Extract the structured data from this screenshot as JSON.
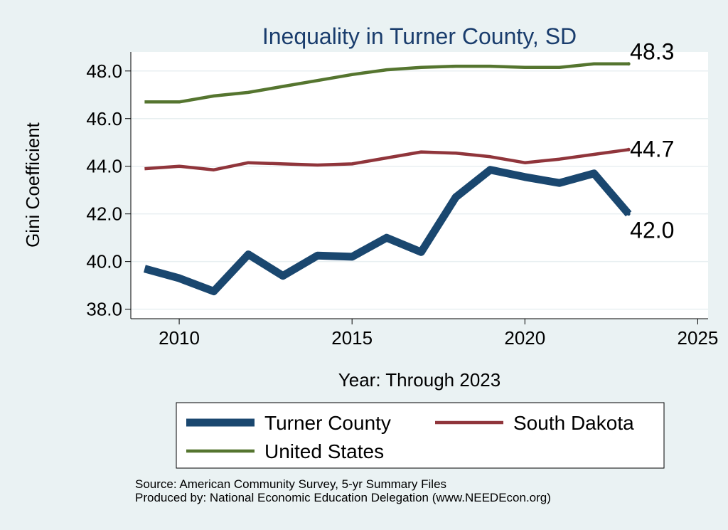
{
  "chart_data": {
    "type": "line",
    "title": "Inequality in Turner County, SD",
    "xlabel": "Year: Through 2023",
    "ylabel": "Gini Coefficient",
    "xlim": [
      2008.6,
      2025.3
    ],
    "ylim": [
      37.6,
      48.8
    ],
    "x_ticks": [
      2010,
      2015,
      2020,
      2025
    ],
    "y_ticks": [
      38.0,
      40.0,
      42.0,
      44.0,
      46.0,
      48.0
    ],
    "y_tick_labels": [
      "38.0",
      "40.0",
      "42.0",
      "44.0",
      "46.0",
      "48.0"
    ],
    "grid": true,
    "legend_position": "bottom",
    "x": [
      2009,
      2010,
      2011,
      2012,
      2013,
      2014,
      2015,
      2016,
      2017,
      2018,
      2019,
      2020,
      2021,
      2022,
      2023
    ],
    "series": [
      {
        "name": "Turner County",
        "color": "#1a476f",
        "values": [
          39.7,
          39.3,
          38.75,
          40.3,
          39.4,
          40.25,
          40.2,
          41.0,
          40.4,
          42.7,
          43.85,
          43.55,
          43.3,
          43.7,
          42.0
        ],
        "end_label": "42.0"
      },
      {
        "name": "South Dakota",
        "color": "#90353b",
        "values": [
          43.9,
          44.0,
          43.85,
          44.15,
          44.1,
          44.05,
          44.1,
          44.35,
          44.6,
          44.55,
          44.4,
          44.15,
          44.3,
          44.5,
          44.7
        ],
        "end_label": "44.7"
      },
      {
        "name": "United States",
        "color": "#55752f",
        "values": [
          46.7,
          46.7,
          46.95,
          47.1,
          47.35,
          47.6,
          47.85,
          48.05,
          48.15,
          48.2,
          48.2,
          48.15,
          48.15,
          48.3,
          48.3
        ],
        "end_label": "48.3"
      }
    ]
  },
  "source_line": "Source: American Community Survey, 5-yr Summary Files",
  "produced_line": "Produced by: National Economic Education Delegation (www.NEEDEcon.org)"
}
